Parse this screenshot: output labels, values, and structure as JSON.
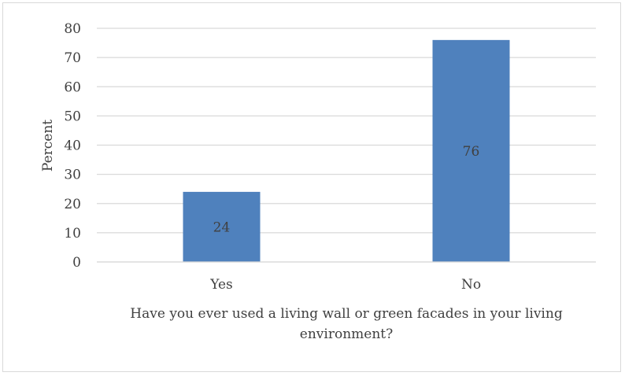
{
  "chart_data": {
    "type": "bar",
    "categories": [
      "Yes",
      "No"
    ],
    "values": [
      24,
      76
    ],
    "data_labels": [
      "24",
      "76"
    ],
    "ylabel": "Percent",
    "xlabel_lines": [
      "Have you ever used a living wall or green facades in your living",
      "environment?"
    ],
    "ylim": [
      0,
      80
    ],
    "yticks": [
      "0",
      "10",
      "20",
      "30",
      "40",
      "50",
      "60",
      "70",
      "80"
    ],
    "grid": true,
    "bar_color": "#4f81bd"
  }
}
